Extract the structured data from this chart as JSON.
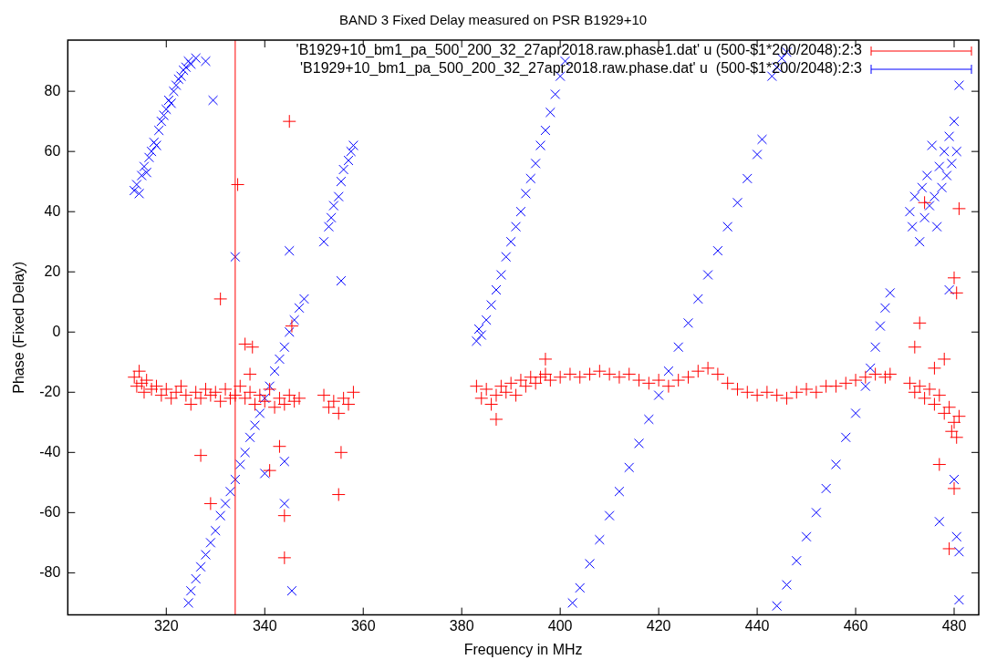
{
  "chart_data": {
    "type": "scatter",
    "title": "BAND 3 Fixed Delay measured on PSR B1929+10",
    "xlabel": "Frequency in MHz",
    "ylabel": "Phase (Fixed Delay)",
    "xlim": [
      300,
      485
    ],
    "xticks": [
      320,
      340,
      360,
      380,
      400,
      420,
      440,
      460,
      480
    ],
    "ylim": [
      -94,
      97
    ],
    "yticks": [
      -80,
      -60,
      -40,
      -20,
      0,
      20,
      40,
      60,
      80
    ],
    "grid": false,
    "legend": "top right",
    "ref_lines": [
      {
        "axis": "x",
        "value": 334,
        "color": "#ff0000"
      }
    ],
    "series": [
      {
        "name": "'B1929+10_bm1_pa_500_200_32_27apr2018.raw.phase1.dat' u (500-$1*200/2048):2:3",
        "color": "#ff0000",
        "marker": "cross",
        "x": [
          313.5,
          314,
          314.5,
          315,
          315.5,
          316,
          317,
          318,
          319,
          320,
          321,
          322,
          323,
          324,
          325,
          326,
          327,
          328,
          329,
          330,
          331,
          332,
          333,
          334,
          335,
          336,
          337,
          338,
          339,
          340,
          341,
          342,
          343,
          344,
          345,
          346,
          347,
          352,
          353,
          354,
          355,
          356,
          357,
          358,
          345,
          334.5,
          331,
          336,
          337.5,
          327,
          329,
          344,
          344,
          355.5,
          355,
          345.5,
          341,
          343,
          337,
          383,
          384,
          385,
          386,
          387,
          388,
          389,
          390,
          391,
          392,
          393,
          394,
          395,
          396,
          397,
          398,
          400,
          402,
          404,
          406,
          408,
          410,
          412,
          414,
          416,
          418,
          420,
          422,
          424,
          426,
          428,
          430,
          432,
          434,
          436,
          438,
          440,
          442,
          444,
          446,
          448,
          450,
          452,
          454,
          456,
          458,
          460,
          462,
          464,
          466,
          467,
          387,
          397,
          471,
          472,
          473,
          474,
          475,
          476,
          477,
          478,
          479,
          480,
          481,
          480.5,
          479.5,
          472,
          473,
          476,
          478,
          480,
          480.5,
          481,
          474,
          479,
          477,
          480
        ],
        "values": [
          -15,
          -18,
          -13,
          -17,
          -20,
          -16,
          -19,
          -18,
          -21,
          -19,
          -22,
          -20,
          -18,
          -21,
          -24,
          -20,
          -22,
          -19,
          -21,
          -20,
          -23,
          -19,
          -22,
          -21,
          -18,
          -22,
          -20,
          -24,
          -21,
          -23,
          -19,
          -25,
          -22,
          -24,
          -21,
          -23,
          -22,
          -21,
          -25,
          -23,
          -27,
          -22,
          -24,
          -20,
          70,
          49,
          11,
          -4,
          -5,
          -41,
          -57,
          -61,
          -75,
          -40,
          -54,
          2,
          -46,
          -38,
          -14,
          -18,
          -22,
          -19,
          -24,
          -21,
          -18,
          -20,
          -17,
          -21,
          -16,
          -18,
          -15,
          -17,
          -15,
          -14,
          -16,
          -15,
          -14,
          -15,
          -14,
          -13,
          -14,
          -15,
          -14,
          -16,
          -17,
          -16,
          -18,
          -16,
          -15,
          -13,
          -12,
          -14,
          -17,
          -19,
          -20,
          -21,
          -20,
          -21,
          -22,
          -20,
          -19,
          -20,
          -18,
          -18,
          -17,
          -16,
          -15,
          -14,
          -15,
          -14,
          -29,
          -9,
          -17,
          -20,
          -18,
          -22,
          -19,
          -24,
          -21,
          -27,
          -25,
          -30,
          -28,
          -35,
          -33,
          -5,
          3,
          -12,
          -9,
          18,
          13,
          41,
          43,
          -72,
          -44,
          -52
        ]
      },
      {
        "name": "'B1929+10_bm1_pa_500_200_32_27apr2018.raw.phase.dat' u  (500-$1*200/2048):2:3",
        "color": "#0000ff",
        "marker": "x",
        "x": [
          313.5,
          314,
          314.5,
          315,
          315.5,
          316,
          316.5,
          317,
          317.5,
          318,
          318.5,
          319,
          319.5,
          320,
          320.5,
          321,
          321.5,
          322,
          322.5,
          323,
          323.5,
          324,
          324.5,
          325,
          326,
          328,
          329.5,
          334,
          345,
          355.5,
          345.5,
          344,
          344,
          340,
          324.5,
          325,
          326,
          327,
          328,
          329,
          330,
          331,
          332,
          333,
          334,
          335,
          336,
          337,
          338,
          339,
          340,
          341,
          342,
          343,
          344,
          345,
          346,
          347,
          348,
          352,
          353,
          353.5,
          354,
          355,
          355.5,
          356,
          357,
          357.5,
          358,
          383,
          383.5,
          384,
          385,
          386,
          387,
          388,
          389,
          390,
          391,
          392,
          393,
          394,
          395,
          396,
          397,
          398,
          399,
          400,
          401,
          402.5,
          404,
          406,
          408,
          410,
          412,
          414,
          416,
          418,
          420,
          422,
          424,
          426,
          428,
          430,
          432,
          434,
          436,
          438,
          440,
          441,
          443,
          444,
          445,
          446,
          444,
          446,
          448,
          450,
          452,
          454,
          456,
          458,
          460,
          462,
          463,
          464,
          465,
          466,
          467,
          471,
          471.5,
          472,
          473,
          473.5,
          474,
          474.5,
          475,
          475.5,
          476,
          476.5,
          477,
          477.5,
          478,
          478.5,
          479,
          479.5,
          480,
          480.5,
          481,
          477,
          479,
          480,
          480.5,
          481,
          481
        ],
        "values": [
          47,
          49,
          46,
          52,
          55,
          53,
          58,
          60,
          63,
          62,
          67,
          70,
          72,
          74,
          77,
          76,
          80,
          82,
          84,
          85,
          87,
          88,
          90,
          89,
          91,
          90,
          77,
          25,
          27,
          17,
          -86,
          -57,
          -43,
          -47,
          -90,
          -86,
          -82,
          -78,
          -74,
          -70,
          -66,
          -61,
          -57,
          -53,
          -49,
          -44,
          -40,
          -35,
          -31,
          -27,
          -22,
          -18,
          -13,
          -9,
          -5,
          0,
          4,
          8,
          11,
          30,
          35,
          38,
          42,
          45,
          50,
          54,
          57,
          60,
          62,
          -3,
          1,
          -1,
          4,
          9,
          14,
          19,
          25,
          30,
          35,
          40,
          46,
          51,
          56,
          62,
          67,
          73,
          79,
          85,
          90,
          -90,
          -85,
          -77,
          -69,
          -61,
          -53,
          -45,
          -37,
          -29,
          -21,
          -13,
          -5,
          3,
          11,
          19,
          27,
          35,
          43,
          51,
          59,
          64,
          85,
          88,
          91,
          93,
          -91,
          -84,
          -76,
          -68,
          -60,
          -52,
          -44,
          -35,
          -27,
          -18,
          -12,
          -5,
          2,
          8,
          13,
          40,
          35,
          45,
          30,
          48,
          38,
          52,
          42,
          62,
          45,
          35,
          55,
          48,
          60,
          52,
          65,
          56,
          70,
          60,
          82,
          -63,
          14,
          -49,
          -68,
          -73,
          -89
        ]
      }
    ]
  }
}
